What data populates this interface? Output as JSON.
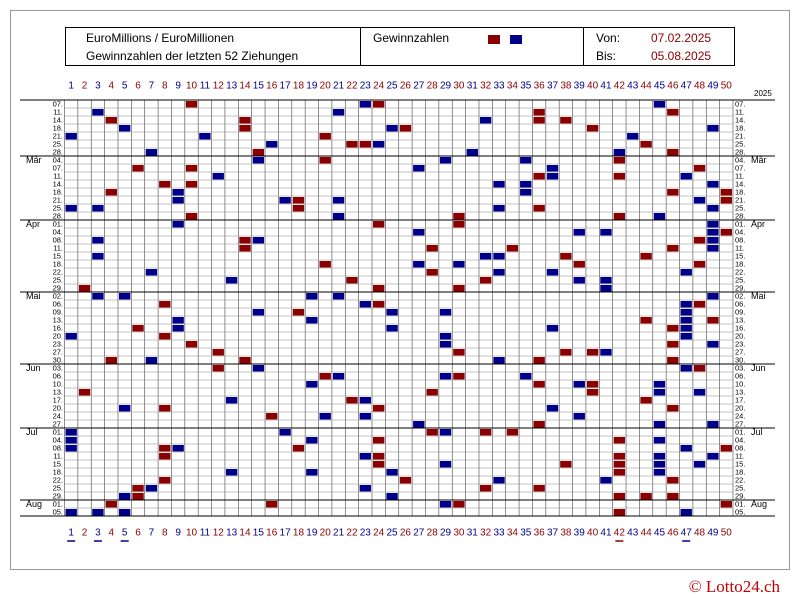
{
  "header": {
    "title_line1": "EuroMillions / EuroMillionen",
    "title_line2": "Gewinnzahlen der letzten 52 Ziehungen",
    "legend_label": "Gewinnzahlen",
    "from_label": "Von:",
    "from_date": "07.02.2025",
    "to_label": "Bis:",
    "to_date": "05.08.2025"
  },
  "year": "2025",
  "footer": "© Lotto24.ch",
  "colors": {
    "red": "#8b0000",
    "blue": "#00008b"
  },
  "numbers": [
    1,
    2,
    3,
    4,
    5,
    6,
    7,
    8,
    9,
    10,
    11,
    12,
    13,
    14,
    15,
    16,
    17,
    18,
    19,
    20,
    21,
    22,
    23,
    24,
    25,
    26,
    27,
    28,
    29,
    30,
    31,
    32,
    33,
    34,
    35,
    36,
    37,
    38,
    39,
    40,
    41,
    42,
    43,
    44,
    45,
    46,
    47,
    48,
    49,
    50
  ],
  "draws": [
    {
      "date": "07.",
      "red": [
        10,
        24
      ],
      "blue": [
        23,
        45
      ]
    },
    {
      "date": "11.",
      "red": [
        36,
        46
      ],
      "blue": [
        3,
        21
      ]
    },
    {
      "date": "14.",
      "red": [
        4,
        14,
        36,
        38
      ],
      "blue": [
        32
      ]
    },
    {
      "date": "18.",
      "red": [
        14,
        26,
        40
      ],
      "blue": [
        5,
        25,
        49
      ]
    },
    {
      "date": "21.",
      "red": [
        20
      ],
      "blue": [
        1,
        11,
        43
      ]
    },
    {
      "date": "25.",
      "red": [
        22,
        23,
        44
      ],
      "blue": [
        16,
        24
      ]
    },
    {
      "date": "28.",
      "red": [
        15,
        46
      ],
      "blue": [
        7,
        31,
        42
      ]
    },
    {
      "date": "04.",
      "month": "Mär",
      "red": [
        20,
        42
      ],
      "blue": [
        15,
        29,
        35
      ]
    },
    {
      "date": "07.",
      "red": [
        6,
        10,
        48
      ],
      "blue": [
        27,
        37
      ]
    },
    {
      "date": "11.",
      "red": [
        36,
        42
      ],
      "blue": [
        12,
        37,
        47
      ]
    },
    {
      "date": "14.",
      "red": [
        8,
        10
      ],
      "blue": [
        33,
        35,
        49
      ]
    },
    {
      "date": "18.",
      "red": [
        4,
        46,
        50
      ],
      "blue": [
        9,
        35
      ]
    },
    {
      "date": "21.",
      "red": [
        18,
        50
      ],
      "blue": [
        9,
        17,
        21,
        48
      ]
    },
    {
      "date": "25.",
      "red": [
        18,
        36
      ],
      "blue": [
        1,
        3,
        33,
        49
      ]
    },
    {
      "date": "28.",
      "red": [
        10,
        30,
        42
      ],
      "blue": [
        21,
        45
      ]
    },
    {
      "date": "01.",
      "month": "Apr",
      "red": [
        24,
        30
      ],
      "blue": [
        9,
        49
      ]
    },
    {
      "date": "04.",
      "red": [
        50
      ],
      "blue": [
        27,
        39,
        41,
        49
      ]
    },
    {
      "date": "08.",
      "red": [
        14,
        48
      ],
      "blue": [
        3,
        15,
        49
      ]
    },
    {
      "date": "11.",
      "red": [
        14,
        28,
        34,
        46
      ],
      "blue": [
        49
      ]
    },
    {
      "date": "15.",
      "red": [
        38,
        44
      ],
      "blue": [
        3,
        32,
        33
      ]
    },
    {
      "date": "18.",
      "red": [
        20,
        39,
        48
      ],
      "blue": [
        27,
        30
      ]
    },
    {
      "date": "22.",
      "red": [
        28
      ],
      "blue": [
        7,
        33,
        37,
        47
      ]
    },
    {
      "date": "25.",
      "red": [
        22,
        32
      ],
      "blue": [
        13,
        39,
        41
      ]
    },
    {
      "date": "29.",
      "red": [
        2,
        24,
        30
      ],
      "blue": [
        41
      ]
    },
    {
      "date": "02.",
      "month": "Mai",
      "red": [],
      "blue": [
        3,
        5,
        19,
        21,
        49
      ]
    },
    {
      "date": "06.",
      "red": [
        8,
        24,
        48
      ],
      "blue": [
        23,
        47
      ]
    },
    {
      "date": "09.",
      "red": [
        18
      ],
      "blue": [
        15,
        25,
        29,
        47
      ]
    },
    {
      "date": "13.",
      "red": [
        44,
        49
      ],
      "blue": [
        9,
        19,
        47
      ]
    },
    {
      "date": "16.",
      "red": [
        6,
        46
      ],
      "blue": [
        9,
        25,
        37,
        47
      ]
    },
    {
      "date": "20.",
      "red": [
        8
      ],
      "blue": [
        1,
        29,
        47
      ]
    },
    {
      "date": "23.",
      "red": [
        10,
        46
      ],
      "blue": [
        29,
        49
      ]
    },
    {
      "date": "27.",
      "red": [
        12,
        30,
        38,
        40
      ],
      "blue": [
        41
      ]
    },
    {
      "date": "30.",
      "red": [
        4,
        14,
        36,
        46
      ],
      "blue": [
        7,
        33
      ]
    },
    {
      "date": "03.",
      "month": "Jun",
      "red": [
        12,
        48
      ],
      "blue": [
        15,
        47
      ]
    },
    {
      "date": "06.",
      "red": [
        20,
        30
      ],
      "blue": [
        21,
        29,
        35
      ]
    },
    {
      "date": "10.",
      "red": [
        36,
        40
      ],
      "blue": [
        19,
        39,
        45
      ]
    },
    {
      "date": "13.",
      "red": [
        2,
        28,
        40
      ],
      "blue": [
        45,
        48
      ]
    },
    {
      "date": "17.",
      "red": [
        22,
        44
      ],
      "blue": [
        13,
        23
      ]
    },
    {
      "date": "20.",
      "red": [
        8,
        24,
        46
      ],
      "blue": [
        5,
        37
      ]
    },
    {
      "date": "24.",
      "red": [
        16
      ],
      "blue": [
        20,
        23,
        39
      ]
    },
    {
      "date": "27.",
      "red": [
        36
      ],
      "blue": [
        27,
        45,
        49
      ]
    },
    {
      "date": "01.",
      "month": "Jul",
      "red": [
        28,
        32,
        34
      ],
      "blue": [
        1,
        17,
        29
      ]
    },
    {
      "date": "04.",
      "red": [
        24,
        42
      ],
      "blue": [
        1,
        19,
        45
      ]
    },
    {
      "date": "08.",
      "red": [
        8,
        18,
        50
      ],
      "blue": [
        1,
        9,
        47
      ]
    },
    {
      "date": "11.",
      "red": [
        8,
        24,
        42
      ],
      "blue": [
        23,
        45,
        49
      ]
    },
    {
      "date": "15.",
      "red": [
        24,
        38,
        42
      ],
      "blue": [
        29,
        45,
        48
      ]
    },
    {
      "date": "18.",
      "red": [
        42
      ],
      "blue": [
        13,
        19,
        25,
        45
      ]
    },
    {
      "date": "22.",
      "red": [
        8,
        26,
        46
      ],
      "blue": [
        33,
        41
      ]
    },
    {
      "date": "25.",
      "red": [
        6,
        32,
        36
      ],
      "blue": [
        7,
        23
      ]
    },
    {
      "date": "29.",
      "red": [
        6,
        42,
        44,
        46
      ],
      "blue": [
        5,
        25
      ]
    },
    {
      "date": "01.",
      "month": "Aug",
      "red": [
        4,
        16,
        30,
        50
      ],
      "blue": [
        29
      ]
    },
    {
      "date": "05.",
      "red": [
        42
      ],
      "blue": [
        1,
        3,
        5,
        47
      ]
    }
  ]
}
